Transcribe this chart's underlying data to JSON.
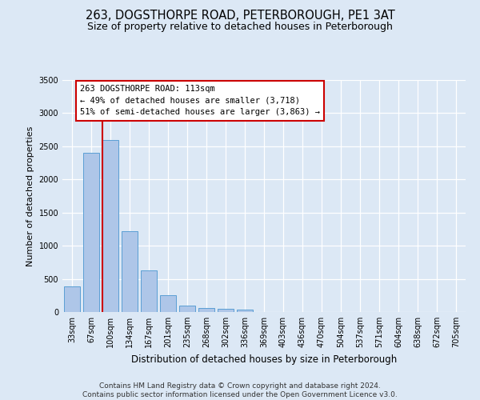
{
  "title": "263, DOGSTHORPE ROAD, PETERBOROUGH, PE1 3AT",
  "subtitle": "Size of property relative to detached houses in Peterborough",
  "xlabel": "Distribution of detached houses by size in Peterborough",
  "ylabel": "Number of detached properties",
  "footer_line1": "Contains HM Land Registry data © Crown copyright and database right 2024.",
  "footer_line2": "Contains public sector information licensed under the Open Government Licence v3.0.",
  "categories": [
    "33sqm",
    "67sqm",
    "100sqm",
    "134sqm",
    "167sqm",
    "201sqm",
    "235sqm",
    "268sqm",
    "302sqm",
    "336sqm",
    "369sqm",
    "403sqm",
    "436sqm",
    "470sqm",
    "504sqm",
    "537sqm",
    "571sqm",
    "604sqm",
    "638sqm",
    "672sqm",
    "705sqm"
  ],
  "bar_values": [
    390,
    2400,
    2600,
    1220,
    630,
    250,
    100,
    60,
    50,
    40,
    0,
    0,
    0,
    0,
    0,
    0,
    0,
    0,
    0,
    0,
    0
  ],
  "bar_color": "#aec6e8",
  "bar_edge_color": "#5a9fd4",
  "vline_color": "#cc0000",
  "vline_xidx": 2,
  "annotation_text": "263 DOGSTHORPE ROAD: 113sqm\n← 49% of detached houses are smaller (3,718)\n51% of semi-detached houses are larger (3,863) →",
  "ylim_max": 3500,
  "yticks": [
    0,
    500,
    1000,
    1500,
    2000,
    2500,
    3000,
    3500
  ],
  "background_color": "#dce8f5",
  "grid_color": "#ffffff",
  "title_fontsize": 10.5,
  "subtitle_fontsize": 9,
  "ylabel_fontsize": 8,
  "xlabel_fontsize": 8.5,
  "tick_fontsize": 7,
  "footer_fontsize": 6.5
}
